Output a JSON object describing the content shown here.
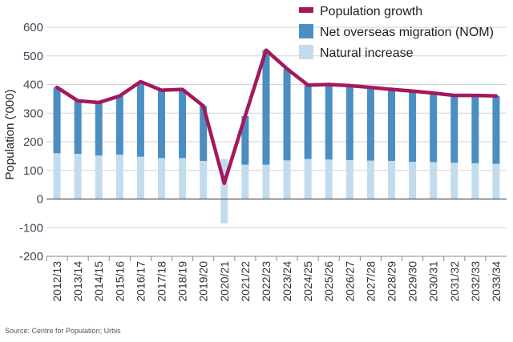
{
  "chart_data": {
    "type": "bar+line",
    "categories": [
      "2012/13",
      "2013/14",
      "2014/15",
      "2015/16",
      "2016/17",
      "2017/18",
      "2018/19",
      "2019/20",
      "2020/21",
      "2021/22",
      "2022/23",
      "2023/24",
      "2024/25",
      "2025/26",
      "2026/27",
      "2027/28",
      "2028/29",
      "2029/30",
      "2030/31",
      "2031/32",
      "2032/33",
      "2033/34"
    ],
    "series": [
      {
        "name": "Population growth",
        "kind": "line",
        "color": "#a3195b",
        "values": [
          390,
          343,
          337,
          360,
          410,
          380,
          383,
          325,
          55,
          290,
          520,
          455,
          398,
          400,
          396,
          390,
          383,
          377,
          370,
          362,
          362,
          360
        ]
      },
      {
        "name": "Net overseas migration (NOM)",
        "kind": "bar",
        "color": "#4a8ec2",
        "values": [
          230,
          185,
          185,
          205,
          262,
          237,
          240,
          192,
          -85,
          170,
          400,
          320,
          258,
          262,
          260,
          256,
          250,
          247,
          241,
          235,
          237,
          237
        ]
      },
      {
        "name": "Natural increase",
        "kind": "bar",
        "color": "#c2dcee",
        "values": [
          160,
          158,
          152,
          155,
          148,
          143,
          143,
          133,
          140,
          120,
          120,
          135,
          140,
          138,
          136,
          134,
          133,
          130,
          129,
          127,
          125,
          123
        ]
      }
    ],
    "ylabel": "Population ('000)",
    "ylim": [
      -200,
      600
    ],
    "yticks": [
      "600",
      "500",
      "400",
      "300",
      "200",
      "100",
      "0",
      "-100",
      "-200"
    ],
    "grid": true,
    "legend_position": "top-right"
  },
  "source": "Source: Centre for Population; Urbis"
}
